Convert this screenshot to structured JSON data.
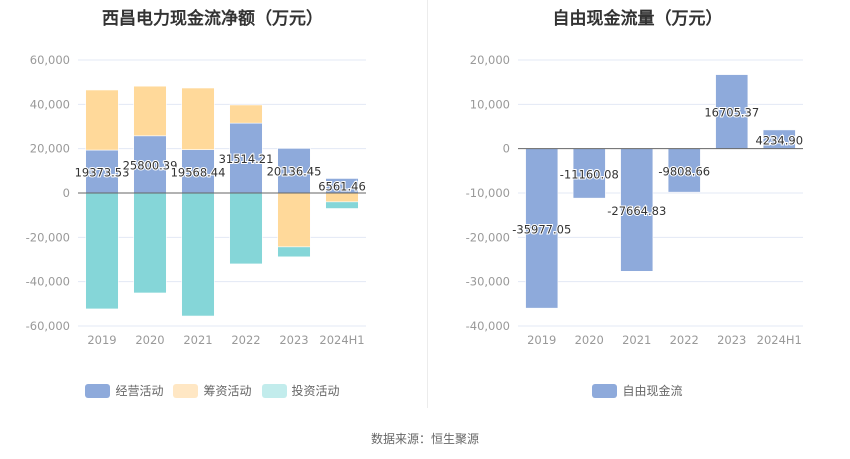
{
  "source": "数据来源：恒生聚源",
  "colors": {
    "operating": "#8eaadb",
    "financing": "#ffd99a",
    "investing": "#85d6d8",
    "financing_legend": "#ffe7c4",
    "investing_legend": "#c2ecec",
    "fcf": "#8eaadb",
    "grid": "#e3e8f4",
    "axis": "#666666"
  },
  "chart_data": [
    {
      "type": "bar",
      "stacked": true,
      "title": "西昌电力现金流净额（万元）",
      "categories": [
        "2019",
        "2020",
        "2021",
        "2022",
        "2023",
        "2024H1"
      ],
      "series": [
        {
          "name": "经营活动",
          "values": [
            19373.53,
            25800.39,
            19568.44,
            31514.21,
            20136.45,
            6561.46
          ]
        },
        {
          "name": "筹资活动",
          "values": [
            27100,
            22400,
            27800,
            8200,
            -24300,
            -4000
          ]
        },
        {
          "name": "投资活动",
          "values": [
            -52300,
            -45100,
            -55500,
            -32000,
            -4500,
            -3000
          ]
        }
      ],
      "data_labels": [
        "19373.53",
        "25800.39",
        "19568.44",
        "31514.21",
        "20136.45",
        "6561.46"
      ],
      "yticks": [
        "60,000",
        "40,000",
        "20,000",
        "0",
        "-20,000",
        "-40,000",
        "-60,000"
      ],
      "ylim": [
        -60000,
        60000
      ],
      "grid": true,
      "legend": "bottom",
      "xlabel": "",
      "ylabel": ""
    },
    {
      "type": "bar",
      "title": "自由现金流量（万元）",
      "categories": [
        "2019",
        "2020",
        "2021",
        "2022",
        "2023",
        "2024H1"
      ],
      "series": [
        {
          "name": "自由现金流",
          "values": [
            -35977.05,
            -11160.08,
            -27664.83,
            -9808.66,
            16705.37,
            4234.9
          ]
        }
      ],
      "data_labels": [
        "-35977.05",
        "-11160.08",
        "-27664.83",
        "-9808.66",
        "16705.37",
        "4234.90"
      ],
      "yticks": [
        "20,000",
        "10,000",
        "0",
        "-10,000",
        "-20,000",
        "-30,000",
        "-40,000"
      ],
      "ylim": [
        -40000,
        20000
      ],
      "grid": true,
      "legend": "bottom",
      "xlabel": "",
      "ylabel": ""
    }
  ]
}
